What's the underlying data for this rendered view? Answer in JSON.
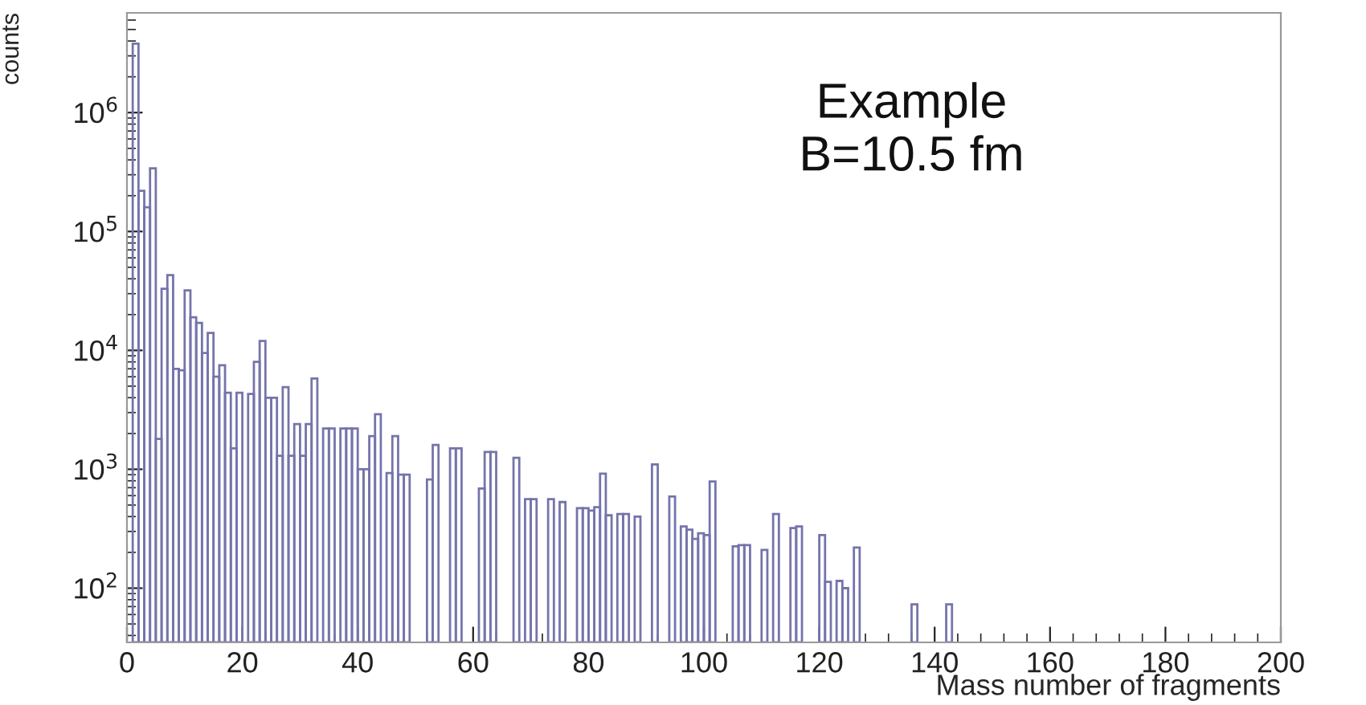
{
  "chart_data": {
    "type": "histogram",
    "xlabel": "Mass number of fragments",
    "ylabel": "counts",
    "annotations": [
      "Example\nB=10.5 fm"
    ],
    "bins": [
      0,
      1,
      2,
      3,
      4,
      5,
      6,
      7,
      8,
      9,
      10,
      11,
      12,
      13,
      14,
      15,
      16,
      17,
      18,
      19,
      20,
      21,
      22,
      23,
      24,
      25,
      26,
      27,
      28,
      29,
      30,
      31,
      32,
      33,
      34,
      35,
      36,
      37,
      38,
      39,
      40,
      41,
      42,
      43,
      44,
      45,
      46,
      47,
      48,
      49,
      50,
      51,
      52,
      53,
      54,
      55,
      56,
      57,
      58,
      59,
      60,
      61,
      62,
      63,
      64,
      65,
      66,
      67,
      68,
      69,
      70,
      71,
      72,
      73,
      74,
      75,
      76,
      77,
      78,
      79,
      80,
      81,
      82,
      83,
      84,
      85,
      86,
      87,
      88,
      89,
      90,
      91,
      92,
      93,
      94,
      95,
      96,
      97,
      98,
      99,
      100,
      101,
      102,
      103,
      104,
      105,
      106,
      107,
      108,
      109,
      110,
      111,
      112,
      113,
      114,
      115,
      116,
      117,
      118,
      119,
      120,
      121,
      122,
      123,
      124,
      125,
      126,
      127,
      128,
      129,
      130,
      131,
      132,
      133,
      134,
      135,
      136,
      137,
      138,
      139,
      140,
      141,
      142,
      143,
      144,
      145,
      146,
      147,
      148,
      149,
      150,
      151,
      152,
      153,
      154,
      155,
      156,
      157,
      158,
      159,
      160,
      161,
      162,
      163,
      164,
      165,
      166,
      167,
      168,
      169,
      170,
      171,
      172,
      173,
      174,
      175,
      176,
      177,
      178,
      179,
      180,
      181,
      182,
      183,
      184,
      185,
      186,
      187,
      188,
      189,
      190,
      191,
      192,
      193,
      194,
      195,
      196,
      197,
      198,
      199,
      200
    ],
    "values": [
      null,
      3800000,
      220000,
      160000,
      340000,
      1800,
      33000,
      43000,
      7000,
      6800,
      32000,
      19000,
      17000,
      9500,
      14000,
      6000,
      7500,
      4400,
      1500,
      4400,
      null,
      4300,
      8000,
      12000,
      4000,
      4000,
      1300,
      4900,
      1300,
      2400,
      1300,
      2400,
      5800,
      null,
      2200,
      2200,
      null,
      2200,
      2200,
      2200,
      1000,
      1000,
      1900,
      2900,
      null,
      930,
      1900,
      900,
      900,
      null,
      null,
      null,
      820,
      1600,
      null,
      null,
      1500,
      1500,
      null,
      null,
      null,
      690,
      1400,
      1400,
      null,
      null,
      null,
      1250,
      null,
      560,
      560,
      null,
      null,
      560,
      null,
      530,
      null,
      null,
      470,
      470,
      450,
      480,
      920,
      410,
      null,
      420,
      420,
      null,
      400,
      null,
      null,
      1100,
      null,
      null,
      590,
      null,
      330,
      310,
      260,
      290,
      280,
      790,
      null,
      null,
      null,
      225,
      230,
      230,
      null,
      null,
      210,
      null,
      420,
      null,
      null,
      320,
      330,
      null,
      null,
      null,
      280,
      113,
      null,
      115,
      100,
      null,
      220,
      null,
      null,
      null,
      null,
      null,
      null,
      null,
      null,
      null,
      73,
      null,
      null,
      null,
      null,
      null,
      73,
      null,
      null,
      null,
      null,
      null,
      null,
      null,
      null,
      null,
      null,
      null,
      null,
      null,
      null,
      null,
      null,
      null,
      null,
      null,
      null,
      null,
      null,
      null,
      null,
      null,
      null,
      null,
      null,
      null,
      null,
      null,
      null,
      null,
      null,
      null,
      null,
      null,
      null,
      null,
      null,
      null,
      null,
      null,
      null,
      null,
      null,
      null,
      null,
      null,
      null,
      null,
      null,
      null,
      null,
      null,
      null,
      null
    ],
    "color": "#7474ac",
    "log": "y",
    "grid": false,
    "legend": false,
    "xlim": [
      0,
      200
    ],
    "xticks": [
      0,
      20,
      40,
      60,
      80,
      100,
      120,
      140,
      160,
      180,
      200
    ],
    "ylim": [
      35,
      6900000
    ],
    "yticks": [
      {
        "value": 100,
        "label": "10$^{2}$"
      },
      {
        "value": 1000,
        "label": "10$^{3}$"
      },
      {
        "value": 10000,
        "label": "10$^{4}$"
      },
      {
        "value": 100000,
        "label": "10$^{5}$"
      },
      {
        "value": 1000000,
        "label": "10$^{6}$"
      }
    ]
  }
}
